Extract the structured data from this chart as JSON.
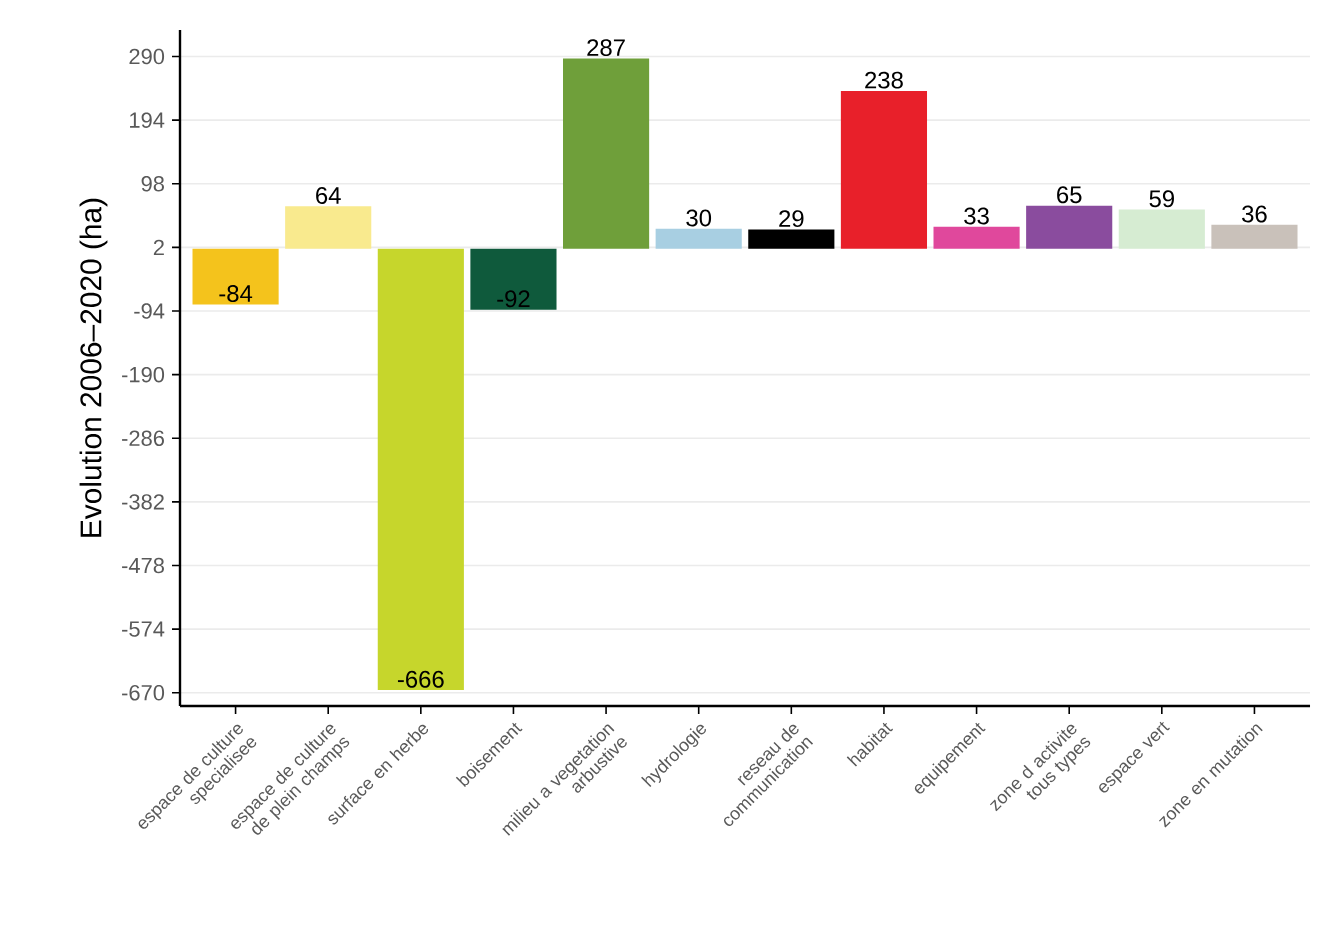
{
  "chart_data": {
    "type": "bar",
    "ylabel": "Evolution 2006–2020 (ha)",
    "categories": [
      "espace de culture specialisee",
      "espace de culture de plein champs",
      "surface en herbe",
      "boisement",
      "milieu a vegetation arbustive",
      "hydrologie",
      "reseau de communication",
      "habitat",
      "equipement",
      "zone d activite tous types",
      "espace vert",
      "zone en mutation"
    ],
    "values": [
      -84,
      64,
      -666,
      -92,
      287,
      30,
      29,
      238,
      33,
      65,
      59,
      36
    ],
    "colors": [
      "#f4c31c",
      "#f9ea8e",
      "#c6d62c",
      "#0f5a3c",
      "#6f9f3a",
      "#a8cfe2",
      "#000000",
      "#e8202a",
      "#e0489c",
      "#8a4c9e",
      "#d6ecd2",
      "#c9c1ba"
    ],
    "ylim": [
      -690,
      330
    ],
    "yticks": [
      -670,
      -574,
      -478,
      -382,
      -286,
      -190,
      -94,
      2,
      98,
      194,
      290
    ],
    "grid": "y",
    "data_labels": true
  }
}
